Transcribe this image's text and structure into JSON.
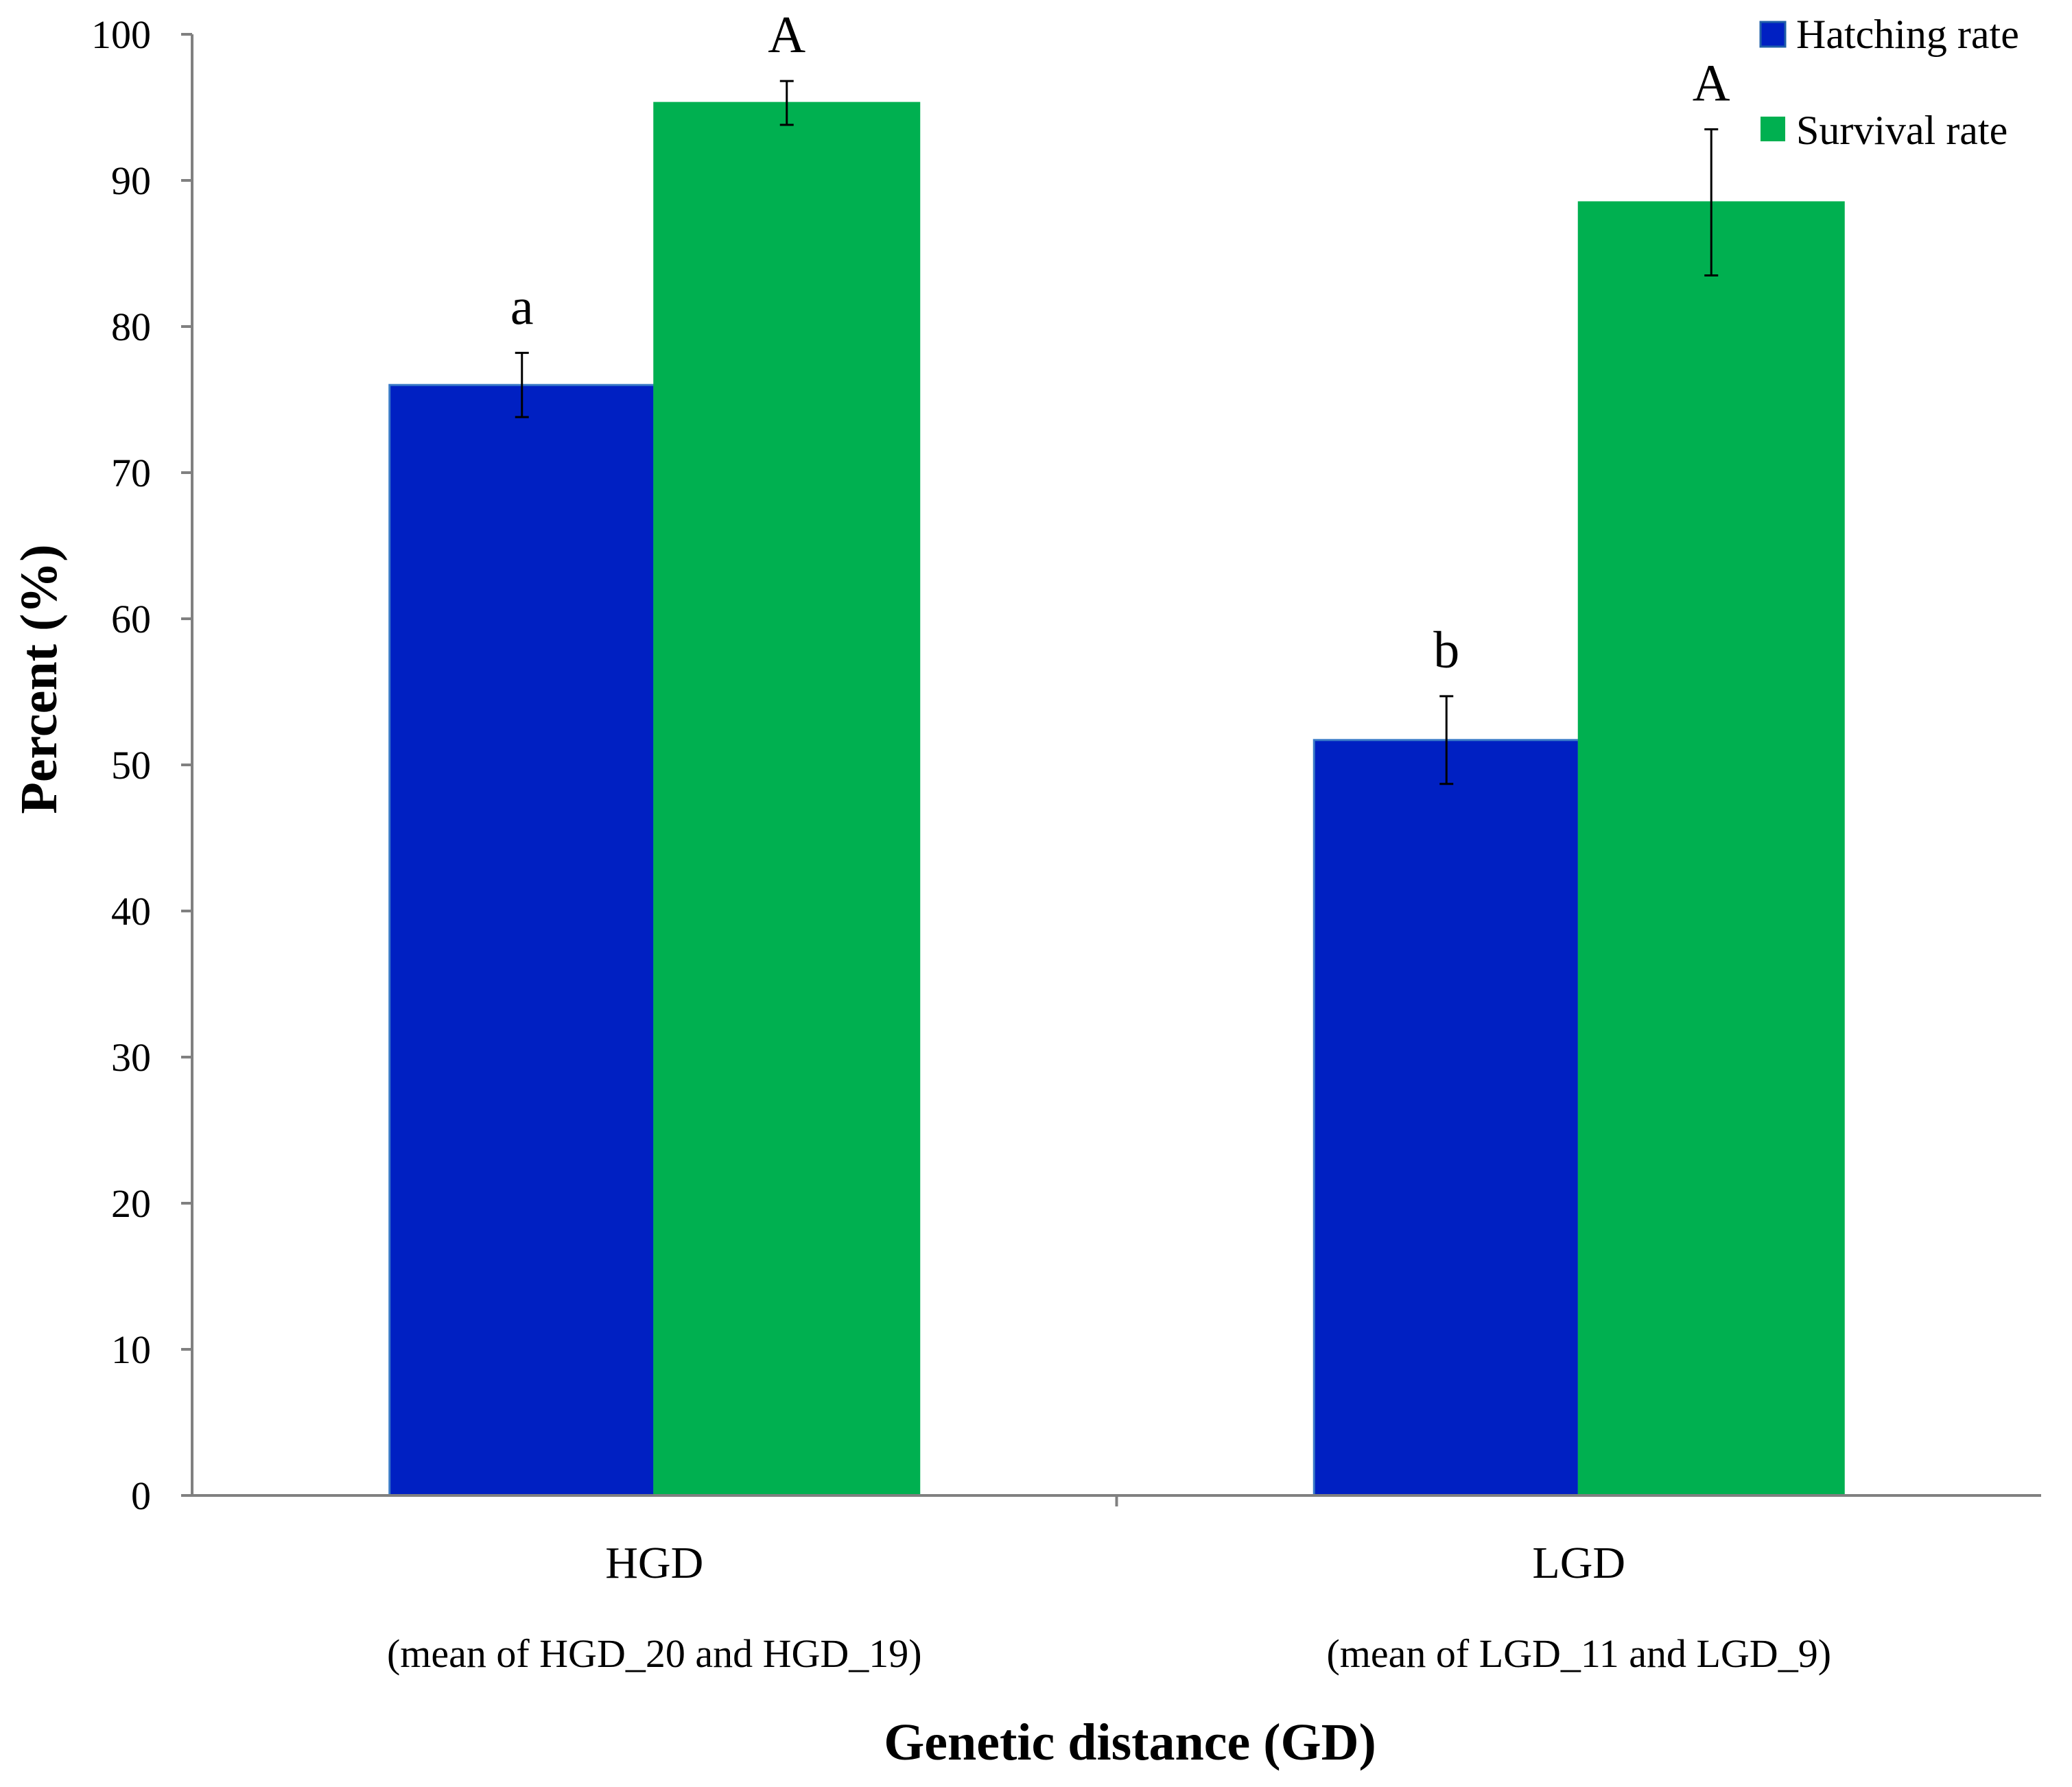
{
  "chart_data": {
    "type": "bar",
    "title": "",
    "xlabel": "Genetic distance (GD)",
    "ylabel": "Percent (%)",
    "ylim": [
      0,
      100
    ],
    "yticks": [
      0,
      10,
      20,
      30,
      40,
      50,
      60,
      70,
      80,
      90,
      100
    ],
    "grid": false,
    "legend_position": "top-right",
    "categories": [
      "HGD",
      "LGD"
    ],
    "category_sublabels": [
      "(mean of HGD_20 and HGD_19)",
      "(mean of LGD_11 and LGD_9)"
    ],
    "series": [
      {
        "name": "Hatching rate",
        "color": "#0020C2",
        "values": [
          76.0,
          51.7
        ],
        "errors": [
          2.2,
          3.0
        ],
        "significance": [
          "a",
          "b"
        ]
      },
      {
        "name": "Survival rate",
        "color": "#00B050",
        "values": [
          95.3,
          88.5
        ],
        "errors": [
          1.5,
          5.0
        ],
        "significance": [
          "A",
          "A"
        ]
      }
    ]
  }
}
